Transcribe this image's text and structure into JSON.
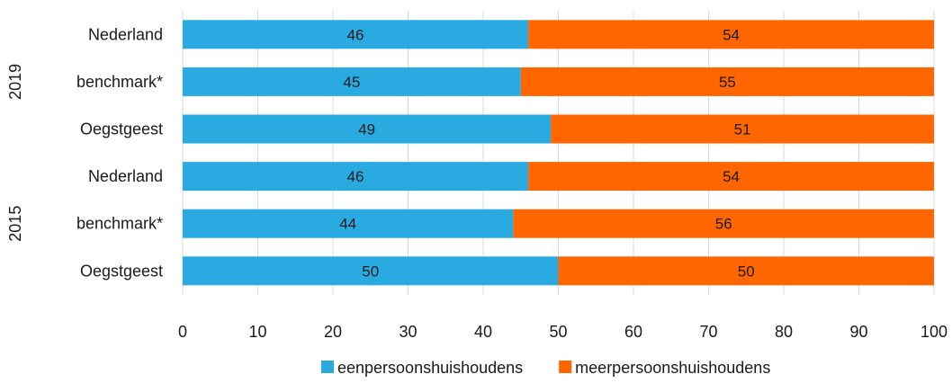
{
  "chart_data": {
    "type": "bar",
    "orientation": "horizontal",
    "stacked": true,
    "groups": [
      {
        "label": "2019",
        "categories": [
          "Nederland",
          "benchmark*",
          "Oegstgeest"
        ]
      },
      {
        "label": "2015",
        "categories": [
          "Nederland",
          "benchmark*",
          "Oegstgeest"
        ]
      }
    ],
    "series": [
      {
        "name": "eenpersoonshuishoudens",
        "color": "#29ABE2",
        "values": [
          46,
          45,
          49,
          46,
          44,
          50
        ]
      },
      {
        "name": "meerpersoonshuishoudens",
        "color": "#FF6600",
        "values": [
          54,
          55,
          51,
          54,
          56,
          50
        ]
      }
    ],
    "xlim": [
      0,
      100
    ],
    "xticks": [
      0,
      10,
      20,
      30,
      40,
      50,
      60,
      70,
      80,
      90,
      100
    ],
    "grid": "vertical",
    "legend": "bottom"
  }
}
